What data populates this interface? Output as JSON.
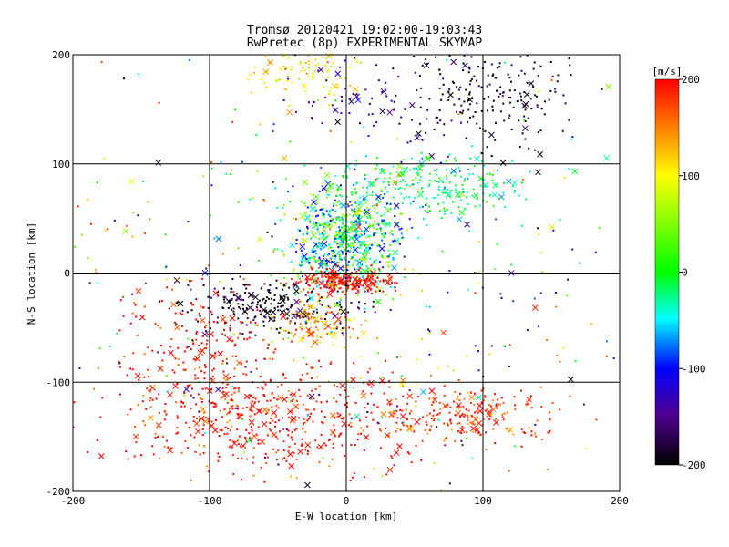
{
  "title_line1": "Tromsø 20120421 19:02:00-19:03:43",
  "title_line2": "RwPretec (8p) EXPERIMENTAL SKYMAP",
  "chart_data": {
    "type": "scatter",
    "title": "Tromsø 20120421 19:02:00-19:03:43",
    "subtitle": "RwPretec (8p) EXPERIMENTAL SKYMAP",
    "xlabel": "E-W location [km]",
    "ylabel": "N-S location [km]",
    "xlim": [
      -200,
      200
    ],
    "ylim": [
      -200,
      200
    ],
    "x_ticks": [
      "-200",
      "-100",
      "0",
      "100",
      "200"
    ],
    "y_ticks": [
      "-200",
      "-100",
      "0",
      "100",
      "200"
    ],
    "grid": true,
    "colorbar": {
      "label": "[m/s]",
      "range": [
        -200,
        200
      ],
      "ticks": [
        "200",
        "100",
        "0",
        "-100",
        "-200"
      ],
      "colors": [
        "#ff0000",
        "#ffff00",
        "#00ff00",
        "#00ffff",
        "#0000ff",
        "#400080",
        "#000000"
      ]
    },
    "clusters": [
      {
        "name": "upper-right",
        "cx": 100,
        "cy": 165,
        "sx": 30,
        "sy": 25,
        "n": 220,
        "v": -200
      },
      {
        "name": "upper-left",
        "cx": -30,
        "cy": 185,
        "sx": 20,
        "sy": 12,
        "n": 90,
        "v": 100
      },
      {
        "name": "upper-mid",
        "cx": 10,
        "cy": 170,
        "sx": 25,
        "sy": 25,
        "n": 70,
        "v": -150
      },
      {
        "name": "mid-right",
        "cx": 60,
        "cy": 80,
        "sx": 35,
        "sy": 15,
        "n": 250,
        "v": -20
      },
      {
        "name": "center-blob",
        "cx": 0,
        "cy": 30,
        "sx": 20,
        "sy": 25,
        "n": 650,
        "v": -60
      },
      {
        "name": "center-band",
        "cx": 0,
        "cy": -7,
        "sx": 18,
        "sy": 5,
        "n": 230,
        "v": 200
      },
      {
        "name": "lower-left-dark",
        "cx": -60,
        "cy": -30,
        "sx": 35,
        "sy": 12,
        "n": 220,
        "v": -200
      },
      {
        "name": "orange-spot",
        "cx": -20,
        "cy": -45,
        "sx": 15,
        "sy": 10,
        "n": 120,
        "v": 140
      },
      {
        "name": "lower-left-red",
        "cx": -110,
        "cy": -65,
        "sx": 30,
        "sy": 25,
        "n": 180,
        "v": 200
      },
      {
        "name": "bottom-red",
        "cx": -60,
        "cy": -130,
        "sx": 55,
        "sy": 25,
        "n": 520,
        "v": 200
      },
      {
        "name": "bottom-right-red",
        "cx": 90,
        "cy": -130,
        "sx": 30,
        "sy": 12,
        "n": 210,
        "v": 180
      },
      {
        "name": "scatter-bg",
        "cx": 0,
        "cy": 0,
        "sx": 120,
        "sy": 110,
        "n": 420,
        "v": 0
      }
    ]
  }
}
